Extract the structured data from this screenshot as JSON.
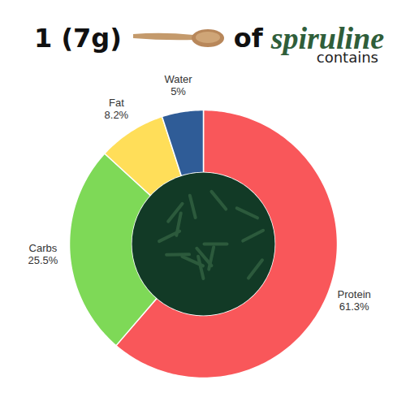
{
  "chart_data": {
    "type": "pie",
    "title": "1 (7g) of spiruline",
    "subtitle": "contains",
    "categories": [
      "Protein",
      "Carbs",
      "Fat",
      "Water"
    ],
    "values": [
      61.3,
      25.5,
      8.2,
      5
    ],
    "value_labels": [
      "61.3%",
      "25.5%",
      "8.2%",
      "5%"
    ],
    "colors": [
      "#f9575a",
      "#7ed957",
      "#ffde59",
      "#2f5c97"
    ],
    "data_labels": true
  }
}
